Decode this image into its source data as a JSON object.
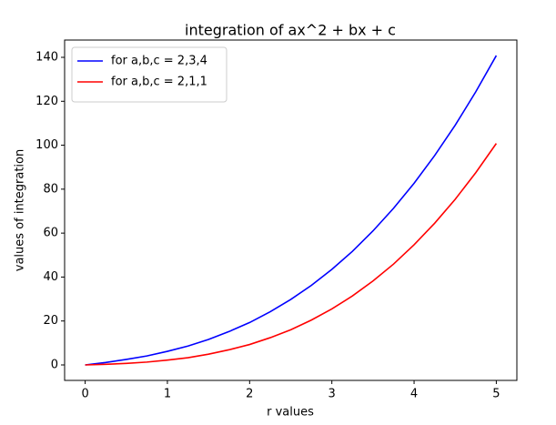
{
  "chart_data": {
    "type": "line",
    "title": "integration of ax^2 + bx + c",
    "x_label": "r values",
    "y_label": "values of integration",
    "x": [
      0,
      0.25,
      0.5,
      0.75,
      1,
      1.25,
      1.5,
      1.75,
      2,
      2.25,
      2.5,
      2.75,
      3,
      3.25,
      3.5,
      3.75,
      4,
      4.25,
      4.5,
      4.75,
      5
    ],
    "series": [
      {
        "name": "for a,b,c = 2,3,4",
        "color": "#0000ff",
        "values": [
          0,
          1.1,
          2.5,
          4.1,
          6.2,
          8.6,
          11.6,
          15.2,
          19.3,
          24.2,
          29.8,
          36.2,
          43.5,
          51.7,
          61.0,
          71.3,
          82.7,
          95.3,
          109.1,
          124.3,
          140.8
        ]
      },
      {
        "name": "for a,b,c = 2,1,1",
        "color": "#ff0000",
        "values": [
          0,
          0.3,
          0.7,
          1.3,
          2.2,
          3.3,
          4.9,
          6.9,
          9.3,
          12.4,
          16.0,
          20.4,
          25.5,
          31.4,
          38.2,
          45.9,
          54.7,
          64.5,
          75.4,
          87.5,
          100.8
        ]
      }
    ],
    "xlim": [
      -0.25,
      5.25
    ],
    "ylim": [
      -7.04,
      147.87
    ],
    "xticks": [
      0,
      1,
      2,
      3,
      4,
      5
    ],
    "yticks": [
      0,
      20,
      40,
      60,
      80,
      100,
      120,
      140
    ],
    "legend": "upper left",
    "grid": false
  }
}
